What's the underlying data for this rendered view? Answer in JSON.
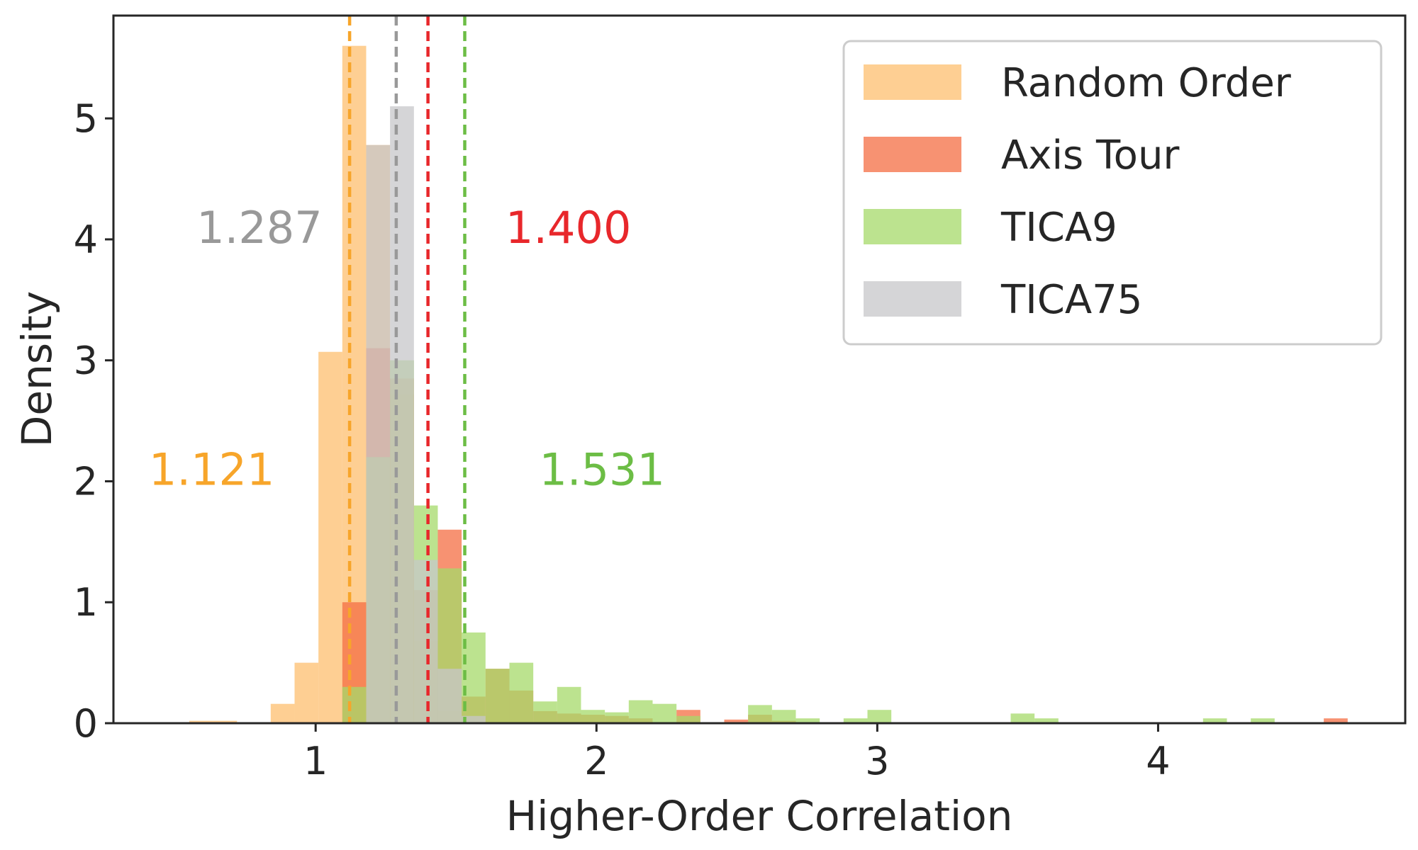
{
  "chart_data": {
    "type": "histogram",
    "title": "",
    "xlabel": "Higher-Order Correlation",
    "ylabel": "Density",
    "xlim": [
      0.28,
      4.88
    ],
    "ylim": [
      0,
      5.85
    ],
    "x_ticks": [
      1,
      2,
      3,
      4
    ],
    "x_tick_labels": [
      "1",
      "2",
      "3",
      "4"
    ],
    "y_ticks": [
      0,
      1,
      2,
      3,
      4,
      5
    ],
    "y_tick_labels": [
      "0",
      "1",
      "2",
      "3",
      "4",
      "5"
    ],
    "grid": false,
    "legend_position": "top-right",
    "series": [
      {
        "name": "Random Order",
        "color": "#fdbf6f",
        "bins": [
          {
            "x0": 0.55,
            "x1": 0.635,
            "y": 0.02
          },
          {
            "x0": 0.635,
            "x1": 0.72,
            "y": 0.02
          },
          {
            "x0": 0.84,
            "x1": 0.925,
            "y": 0.16
          },
          {
            "x0": 0.925,
            "x1": 1.01,
            "y": 0.5
          },
          {
            "x0": 1.01,
            "x1": 1.095,
            "y": 3.07
          },
          {
            "x0": 1.095,
            "x1": 1.18,
            "y": 5.6
          },
          {
            "x0": 1.18,
            "x1": 1.265,
            "y": 4.78
          },
          {
            "x0": 1.265,
            "x1": 1.35,
            "y": 2.72
          },
          {
            "x0": 1.35,
            "x1": 1.435,
            "y": 0.68
          },
          {
            "x0": 1.435,
            "x1": 1.52,
            "y": 0.1
          }
        ]
      },
      {
        "name": "Axis Tour",
        "color": "#f46d43",
        "bins": [
          {
            "x0": 1.095,
            "x1": 1.18,
            "y": 1.0
          },
          {
            "x0": 1.18,
            "x1": 1.265,
            "y": 3.1
          },
          {
            "x0": 1.265,
            "x1": 1.35,
            "y": 2.85
          },
          {
            "x0": 1.35,
            "x1": 1.435,
            "y": 1.1
          },
          {
            "x0": 1.435,
            "x1": 1.52,
            "y": 1.6
          },
          {
            "x0": 1.52,
            "x1": 1.605,
            "y": 0.22
          },
          {
            "x0": 1.605,
            "x1": 1.69,
            "y": 0.45
          },
          {
            "x0": 1.69,
            "x1": 1.775,
            "y": 0.27
          },
          {
            "x0": 1.775,
            "x1": 1.86,
            "y": 0.1
          },
          {
            "x0": 1.86,
            "x1": 1.945,
            "y": 0.08
          },
          {
            "x0": 1.945,
            "x1": 2.03,
            "y": 0.07
          },
          {
            "x0": 2.03,
            "x1": 2.115,
            "y": 0.06
          },
          {
            "x0": 2.115,
            "x1": 2.2,
            "y": 0.04
          },
          {
            "x0": 2.285,
            "x1": 2.37,
            "y": 0.11
          },
          {
            "x0": 2.455,
            "x1": 2.54,
            "y": 0.03
          },
          {
            "x0": 2.54,
            "x1": 2.625,
            "y": 0.07
          },
          {
            "x0": 2.625,
            "x1": 2.71,
            "y": 0.02
          },
          {
            "x0": 4.59,
            "x1": 4.675,
            "y": 0.04
          }
        ]
      },
      {
        "name": "TICA9",
        "color": "#a6d96a",
        "bins": [
          {
            "x0": 1.095,
            "x1": 1.18,
            "y": 0.3
          },
          {
            "x0": 1.18,
            "x1": 1.265,
            "y": 2.2
          },
          {
            "x0": 1.265,
            "x1": 1.35,
            "y": 3.0
          },
          {
            "x0": 1.35,
            "x1": 1.435,
            "y": 1.8
          },
          {
            "x0": 1.435,
            "x1": 1.52,
            "y": 1.28
          },
          {
            "x0": 1.52,
            "x1": 1.605,
            "y": 0.75
          },
          {
            "x0": 1.605,
            "x1": 1.69,
            "y": 0.45
          },
          {
            "x0": 1.69,
            "x1": 1.775,
            "y": 0.5
          },
          {
            "x0": 1.775,
            "x1": 1.86,
            "y": 0.18
          },
          {
            "x0": 1.86,
            "x1": 1.945,
            "y": 0.3
          },
          {
            "x0": 1.945,
            "x1": 2.03,
            "y": 0.11
          },
          {
            "x0": 2.03,
            "x1": 2.115,
            "y": 0.09
          },
          {
            "x0": 2.115,
            "x1": 2.2,
            "y": 0.19
          },
          {
            "x0": 2.2,
            "x1": 2.285,
            "y": 0.16
          },
          {
            "x0": 2.285,
            "x1": 2.37,
            "y": 0.06
          },
          {
            "x0": 2.54,
            "x1": 2.625,
            "y": 0.15
          },
          {
            "x0": 2.625,
            "x1": 2.71,
            "y": 0.11
          },
          {
            "x0": 2.71,
            "x1": 2.795,
            "y": 0.04
          },
          {
            "x0": 2.88,
            "x1": 2.965,
            "y": 0.04
          },
          {
            "x0": 2.965,
            "x1": 3.05,
            "y": 0.11
          },
          {
            "x0": 3.475,
            "x1": 3.56,
            "y": 0.08
          },
          {
            "x0": 3.56,
            "x1": 3.645,
            "y": 0.04
          },
          {
            "x0": 4.16,
            "x1": 4.245,
            "y": 0.04
          },
          {
            "x0": 4.33,
            "x1": 4.415,
            "y": 0.04
          }
        ]
      },
      {
        "name": "TICA75",
        "color": "#c7c7c9",
        "bins": [
          {
            "x0": 1.18,
            "x1": 1.265,
            "y": 4.78
          },
          {
            "x0": 1.265,
            "x1": 1.35,
            "y": 5.1
          },
          {
            "x0": 1.35,
            "x1": 1.435,
            "y": 1.35
          },
          {
            "x0": 1.435,
            "x1": 1.52,
            "y": 0.45
          },
          {
            "x0": 1.52,
            "x1": 1.605,
            "y": 0.06
          }
        ]
      }
    ],
    "mean_lines": [
      {
        "series": "Random Order",
        "x": 1.121,
        "label": "1.121",
        "color": "#f7a52a",
        "label_x": 0.63,
        "label_y": 2.1
      },
      {
        "series": "TICA75",
        "x": 1.287,
        "label": "1.287",
        "color": "#999999",
        "label_x": 0.8,
        "label_y": 4.1
      },
      {
        "series": "Axis Tour",
        "x": 1.4,
        "label": "1.400",
        "color": "#e8272b",
        "label_x": 1.9,
        "label_y": 4.1
      },
      {
        "series": "TICA9",
        "x": 1.531,
        "label": "1.531",
        "color": "#6cbd45",
        "label_x": 2.02,
        "label_y": 2.1
      }
    ]
  }
}
